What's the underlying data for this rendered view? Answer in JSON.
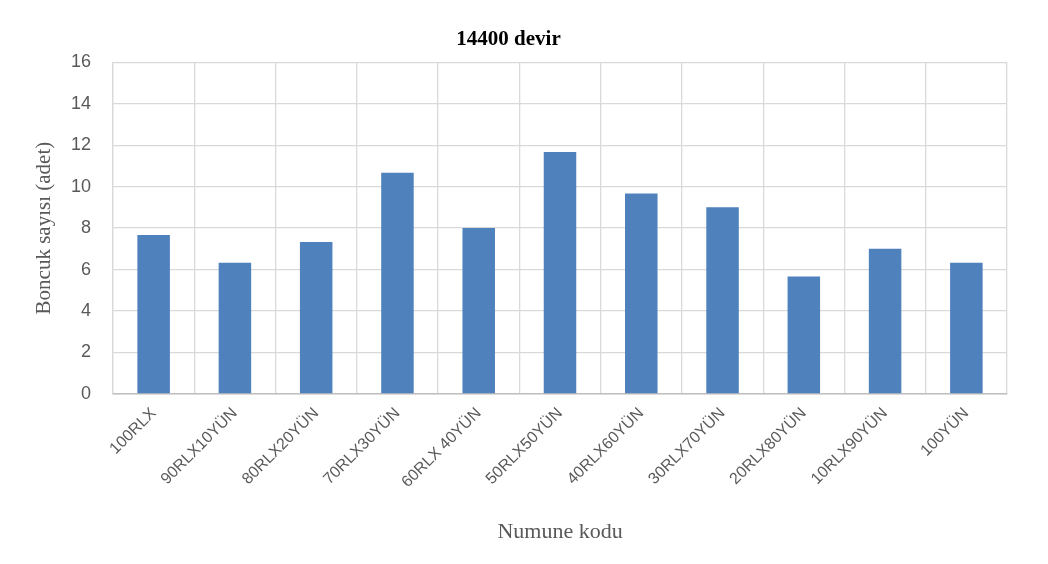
{
  "chart_data": {
    "type": "bar",
    "title": "14400 devir",
    "xlabel": "Numune kodu",
    "ylabel": "Boncuk sayısı (adet)",
    "categories": [
      "100RLX",
      "90RLX10YÜN",
      "80RLX20YÜN",
      "70RLX30YÜN",
      "60RLX 40YÜN",
      "50RLX50YÜN",
      "40RLX60YÜN",
      "30RLX70YÜN",
      "20RLX80YÜN",
      "10RLX90YÜN",
      "100YÜN"
    ],
    "values": [
      7.67,
      6.33,
      7.33,
      10.67,
      8,
      11.67,
      9.67,
      9,
      5.67,
      7,
      6.33
    ],
    "color": "#4f81bd",
    "ylim": [
      0,
      16
    ],
    "yticks": [
      0,
      2,
      4,
      6,
      8,
      10,
      12,
      14,
      16
    ],
    "grid": true
  }
}
